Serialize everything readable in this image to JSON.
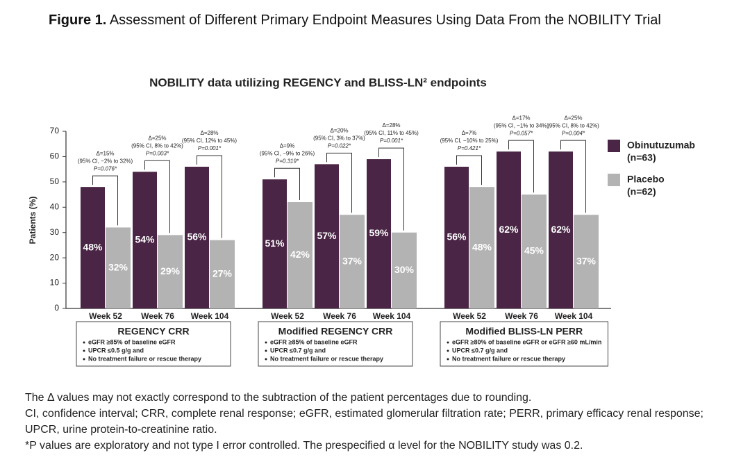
{
  "figure": {
    "label": "Figure 1.",
    "title": "Assessment of Different Primary Endpoint Measures Using Data From the NOBILITY Trial"
  },
  "chart_data": {
    "type": "bar",
    "title": "NOBILITY data utilizing REGENCY and BLISS-LN² endpoints",
    "y_label": "Patients (%)",
    "ylim": [
      0,
      70
    ],
    "yticks": [
      0,
      10,
      20,
      30,
      40,
      50,
      60,
      70
    ],
    "categories": [
      "Week 52",
      "Week 76",
      "Week 104",
      "Week 52",
      "Week 76",
      "Week 104",
      "Week 52",
      "Week 76",
      "Week 104"
    ],
    "groups": [
      {
        "title": "REGENCY CRR",
        "criteria": [
          "eGFR ≥85% of baseline eGFR",
          "UPCR ≤0.5 g/g and",
          "No treatment failure or rescue therapy"
        ]
      },
      {
        "title": "Modified REGENCY CRR",
        "criteria": [
          "eGFR ≥85% of baseline eGFR",
          "UPCR ≤0.7 g/g and",
          "No treatment failure or rescue therapy"
        ]
      },
      {
        "title": "Modified BLISS-LN PERR",
        "criteria": [
          "eGFR ≥80% of baseline eGFR or eGFR ≥60 mL/min",
          "UPCR ≤0.7 g/g and",
          "No treatment failure or rescue therapy"
        ]
      }
    ],
    "series": [
      {
        "name": "Obinutuzumab",
        "n_label": "(n=63)",
        "color": "#4a2545",
        "values": [
          48,
          54,
          56,
          51,
          57,
          59,
          56,
          62,
          62
        ],
        "value_labels": [
          "48%",
          "54%",
          "56%",
          "51%",
          "57%",
          "59%",
          "56%",
          "62%",
          "62%"
        ]
      },
      {
        "name": "Placebo",
        "n_label": "(n=62)",
        "color": "#b3b3b3",
        "values": [
          32,
          29,
          27,
          42,
          37,
          30,
          48,
          45,
          37
        ],
        "value_labels": [
          "32%",
          "29%",
          "27%",
          "42%",
          "37%",
          "30%",
          "48%",
          "45%",
          "37%"
        ]
      }
    ],
    "annotations": [
      {
        "delta": "Δ=15%",
        "ci": "(95% CI, −2% to 32%)",
        "p": "P=0.076*"
      },
      {
        "delta": "Δ=25%",
        "ci": "(95% CI, 8% to 42%)",
        "p": "P=0.003*"
      },
      {
        "delta": "Δ=28%",
        "ci": "(95% CI, 12% to 45%)",
        "p": "P=0.001*"
      },
      {
        "delta": "Δ=9%",
        "ci": "(95% CI, −9% to 26%)",
        "p": "P=0.319*"
      },
      {
        "delta": "Δ=20%",
        "ci": "(95% CI, 3% to 37%)",
        "p": "P=0.022*"
      },
      {
        "delta": "Δ=28%",
        "ci": "(95% CI, 11% to 45%)",
        "p": "P=0.001*"
      },
      {
        "delta": "Δ=7%",
        "ci": "(95% CI, −10% to 25%)",
        "p": "P=0.421*"
      },
      {
        "delta": "Δ=17%",
        "ci": "(95% CI, −1% to 34%)",
        "p": "P=0.057*"
      },
      {
        "delta": "Δ=25%",
        "ci": "(95% CI, 8% to 42%)",
        "p": "P=0.004*"
      }
    ]
  },
  "footnotes": [
    "The Δ values may not exactly correspond to the subtraction of the patient percentages due to rounding.",
    "CI, confidence interval; CRR, complete renal response; eGFR, estimated glomerular filtration rate; PERR, primary efficacy renal response; UPCR, urine protein-to-creatinine ratio.",
    "*P values are exploratory and not type I error controlled. The prespecified α level for the NOBILITY study was 0.2."
  ]
}
